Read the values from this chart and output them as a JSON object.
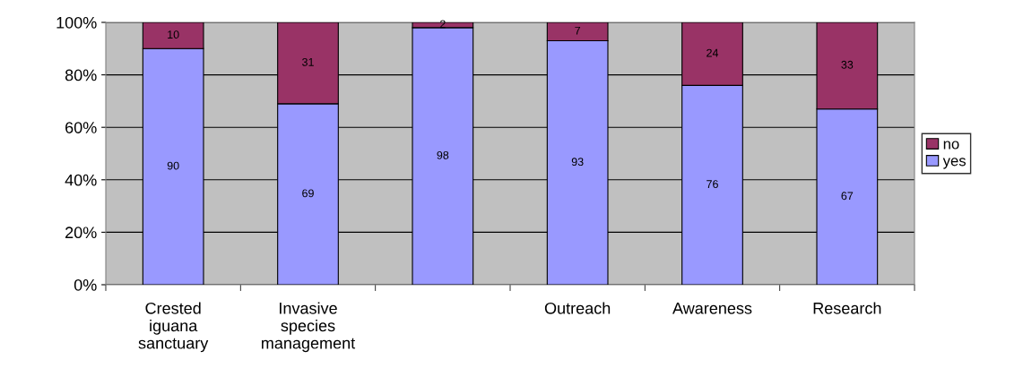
{
  "chart_data": {
    "type": "bar",
    "stacked": true,
    "categories": [
      "Crested\niguana\nsanctuary",
      "Invasive\nspecies\nmanagement",
      null,
      "Outreach",
      "Awareness",
      "Research"
    ],
    "series": [
      {
        "name": "yes",
        "color": "#9999ff",
        "values": [
          90,
          69,
          98,
          93,
          76,
          67
        ]
      },
      {
        "name": "no",
        "color": "#993366",
        "values": [
          10,
          31,
          2,
          7,
          24,
          33
        ]
      }
    ],
    "ylim": [
      0,
      100
    ],
    "yticks": [
      {
        "value": 0,
        "label": "0%"
      },
      {
        "value": 20,
        "label": "20%"
      },
      {
        "value": 40,
        "label": "40%"
      },
      {
        "value": 60,
        "label": "60%"
      },
      {
        "value": 80,
        "label": "80%"
      },
      {
        "value": 100,
        "label": "100%"
      }
    ],
    "grid": "y",
    "legend": "right",
    "data_labels": true
  }
}
